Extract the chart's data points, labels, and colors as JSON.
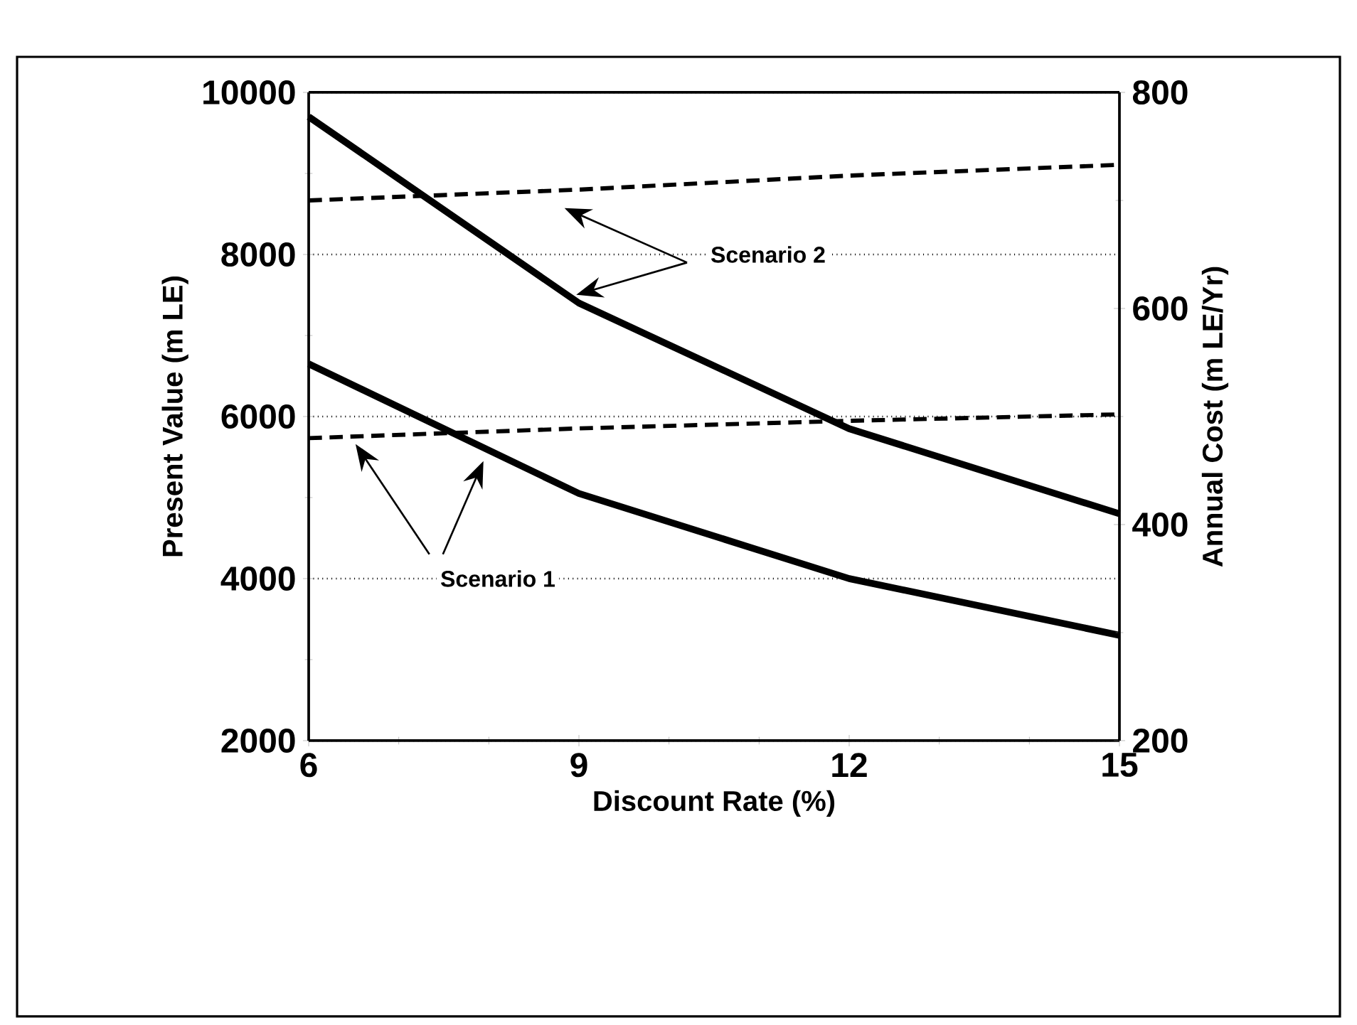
{
  "chart_data": {
    "type": "line",
    "xlabel": "Discount Rate (%)",
    "ylabel": "Present Value (m LE)",
    "y2label": "Annual Cost (m LE/Yr)",
    "x": [
      6,
      9,
      12,
      15
    ],
    "xlim": [
      6,
      15
    ],
    "xticks": [
      6,
      9,
      12,
      15
    ],
    "ylim": [
      2000,
      10000
    ],
    "yticks": [
      2000,
      4000,
      6000,
      8000,
      10000
    ],
    "y2lim": [
      200,
      800
    ],
    "y2ticks": [
      200,
      400,
      600,
      800
    ],
    "grid": "y",
    "marker": "none",
    "series": [
      {
        "color": "#000000",
        "line_style": "solid",
        "values": [
          9700,
          7400,
          5850,
          4800
        ]
      },
      {
        "color": "#000000",
        "line_style": "solid",
        "values": [
          6650,
          5050,
          4000,
          3300
        ]
      },
      {
        "color": "#000000",
        "line_style": "dashed",
        "axis": "y2",
        "values": [
          700,
          710,
          723,
          733
        ]
      },
      {
        "color": "#000000",
        "line_style": "dashed",
        "axis": "y2",
        "values": [
          480,
          489,
          496,
          502
        ]
      }
    ],
    "annotations": [
      "Scenario 2",
      "Scenario 1"
    ]
  }
}
